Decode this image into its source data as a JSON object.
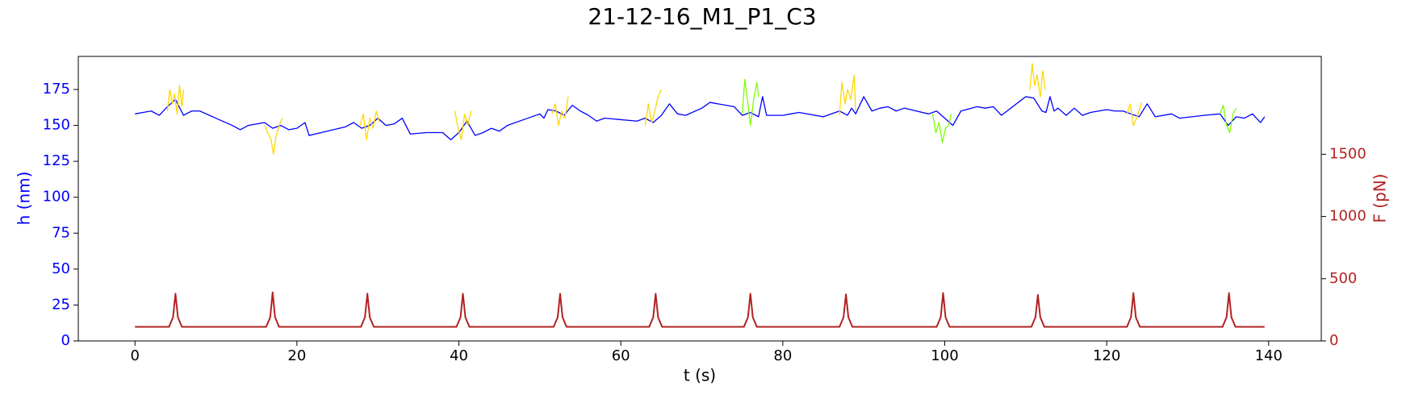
{
  "chart_data": {
    "type": "line",
    "title": "21-12-16_M1_P1_C3",
    "x_label": "t (s)",
    "y_label": "h (nm)",
    "y2_label": "F (pN)",
    "y_color": "#0000ff",
    "y2_color": "#b22222",
    "xlim": [
      -7,
      146.5
    ],
    "xticks": [
      0,
      20,
      40,
      60,
      80,
      100,
      120,
      140
    ],
    "ylim": [
      0,
      198
    ],
    "yticks": [
      0,
      25,
      50,
      75,
      100,
      125,
      150,
      175
    ],
    "y2lim": [
      0,
      2286
    ],
    "y2ticks": [
      0,
      500,
      1000,
      1500
    ],
    "grid": false,
    "series": [
      {
        "color": "#0000ff",
        "axis": "y",
        "x": [
          0,
          1,
          2,
          3,
          4,
          5,
          6,
          7,
          8,
          10,
          12,
          13,
          14,
          16,
          17,
          18,
          19,
          20,
          21,
          21.5,
          23,
          26,
          27,
          28,
          29,
          30,
          31,
          32,
          33,
          34,
          36,
          38,
          39,
          40,
          41,
          42,
          43,
          44,
          45,
          46,
          48,
          50,
          50.5,
          51,
          52,
          53,
          54,
          55,
          56,
          57,
          58,
          62,
          63,
          64,
          65,
          66,
          67,
          68,
          70,
          71,
          74,
          75,
          76,
          77,
          77.5,
          78,
          80,
          81,
          82,
          85,
          87,
          88,
          88.5,
          89,
          90,
          91,
          92,
          93,
          94,
          95,
          98,
          99,
          100,
          101,
          102,
          104,
          105,
          106,
          107,
          110,
          111,
          112,
          112.5,
          113,
          113.5,
          114,
          115,
          116,
          117,
          118,
          120,
          121,
          122,
          123,
          124,
          125,
          126,
          128,
          129,
          132,
          134,
          135,
          136,
          137,
          138,
          139,
          139.5
        ],
        "values": [
          158,
          159,
          160,
          157,
          163,
          168,
          157,
          160,
          160,
          155,
          150,
          147,
          150,
          152,
          148,
          150,
          147,
          148,
          152,
          143,
          145,
          149,
          152,
          148,
          150,
          155,
          150,
          151,
          155,
          144,
          145,
          145,
          140,
          145,
          153,
          143,
          145,
          148,
          146,
          150,
          154,
          158,
          155,
          161,
          160,
          157,
          164,
          160,
          157,
          153,
          155,
          153,
          155,
          152,
          157,
          165,
          158,
          157,
          162,
          166,
          163,
          157,
          159,
          156,
          170,
          157,
          157,
          158,
          159,
          156,
          160,
          157,
          162,
          158,
          170,
          160,
          162,
          163,
          160,
          162,
          158,
          160,
          155,
          150,
          160,
          163,
          162,
          163,
          157,
          170,
          169,
          160,
          159,
          170,
          160,
          162,
          157,
          162,
          157,
          159,
          161,
          160,
          160,
          158,
          156,
          165,
          156,
          158,
          155,
          157,
          158,
          150,
          156,
          155,
          158,
          152,
          156
        ]
      },
      {
        "color": "#ffd700",
        "axis": "y",
        "x": [
          4,
          4.3,
          4.6,
          4.9,
          5.2,
          5.5,
          5.8,
          6
        ],
        "values": [
          160,
          175,
          165,
          172,
          158,
          178,
          163,
          175
        ]
      },
      {
        "color": "#ffd700",
        "axis": "y",
        "x": [
          16,
          16.4,
          16.8,
          17.1,
          17.4,
          17.8,
          18.2
        ],
        "values": [
          150,
          145,
          140,
          130,
          142,
          150,
          155
        ]
      },
      {
        "color": "#ffd700",
        "axis": "y",
        "x": [
          27.8,
          28.2,
          28.6,
          29,
          29.4,
          29.8,
          30.2
        ],
        "values": [
          150,
          158,
          140,
          155,
          148,
          160,
          152
        ]
      },
      {
        "color": "#ffd700",
        "axis": "y",
        "x": [
          39.5,
          39.9,
          40.3,
          40.7,
          41.1,
          41.5
        ],
        "values": [
          160,
          148,
          140,
          158,
          150,
          160
        ]
      },
      {
        "color": "#ffd700",
        "axis": "y",
        "x": [
          51.5,
          51.9,
          52.3,
          52.7,
          53.1,
          53.5
        ],
        "values": [
          158,
          165,
          150,
          160,
          155,
          170
        ]
      },
      {
        "color": "#ffd700",
        "axis": "y",
        "x": [
          63,
          63.4,
          63.8,
          64.2,
          64.6,
          65
        ],
        "values": [
          150,
          165,
          152,
          160,
          170,
          175
        ]
      },
      {
        "color": "#7cfc00",
        "axis": "y",
        "x": [
          75,
          75.3,
          75.7,
          76,
          76.4,
          76.8,
          77
        ],
        "values": [
          158,
          182,
          165,
          150,
          168,
          180,
          170
        ]
      },
      {
        "color": "#ffd700",
        "axis": "y",
        "x": [
          87,
          87.3,
          87.7,
          88,
          88.4,
          88.8,
          89
        ],
        "values": [
          157,
          180,
          165,
          175,
          168,
          185,
          160
        ]
      },
      {
        "color": "#7cfc00",
        "axis": "y",
        "x": [
          98.5,
          98.9,
          99.3,
          99.7,
          100.1,
          100.5,
          100.8
        ],
        "values": [
          158,
          145,
          152,
          138,
          148,
          150,
          158
        ]
      },
      {
        "color": "#ffd700",
        "axis": "y",
        "x": [
          110.5,
          110.8,
          111.1,
          111.4,
          111.8,
          112.1,
          112.4
        ],
        "values": [
          175,
          193,
          178,
          185,
          170,
          188,
          175
        ]
      },
      {
        "color": "#ffd700",
        "axis": "y",
        "x": [
          122.5,
          122.9,
          123.3,
          123.7,
          124.1,
          124.3
        ],
        "values": [
          158,
          165,
          150,
          155,
          162,
          166
        ]
      },
      {
        "color": "#7cfc00",
        "axis": "y",
        "x": [
          134,
          134.4,
          134.8,
          135.2,
          135.6,
          136
        ],
        "values": [
          158,
          164,
          150,
          145,
          158,
          162
        ]
      },
      {
        "color": "#b22222",
        "axis": "y2",
        "x": [
          0,
          4.2,
          4.7,
          5,
          5.3,
          5.8,
          16.2,
          16.7,
          17,
          17.3,
          17.8,
          27.9,
          28.4,
          28.7,
          29,
          29.5,
          39.7,
          40.2,
          40.5,
          40.8,
          41.3,
          51.7,
          52.2,
          52.5,
          52.8,
          53.3,
          63.5,
          64,
          64.3,
          64.6,
          65.1,
          75.2,
          75.7,
          76,
          76.3,
          76.8,
          87,
          87.5,
          87.8,
          88.1,
          88.6,
          99,
          99.5,
          99.8,
          100.1,
          100.6,
          110.7,
          111.2,
          111.5,
          111.8,
          112.3,
          122.5,
          123,
          123.3,
          123.6,
          124.1,
          134.3,
          134.8,
          135.1,
          135.4,
          135.9,
          139.5
        ],
        "values": [
          113,
          113,
          190,
          380,
          190,
          113,
          113,
          190,
          390,
          190,
          113,
          113,
          190,
          380,
          190,
          113,
          113,
          190,
          380,
          190,
          113,
          113,
          190,
          380,
          190,
          113,
          113,
          190,
          380,
          190,
          113,
          113,
          190,
          380,
          190,
          113,
          113,
          190,
          375,
          190,
          113,
          113,
          190,
          385,
          190,
          113,
          113,
          190,
          370,
          190,
          113,
          113,
          190,
          385,
          190,
          113,
          113,
          190,
          385,
          190,
          113,
          113
        ]
      }
    ]
  }
}
